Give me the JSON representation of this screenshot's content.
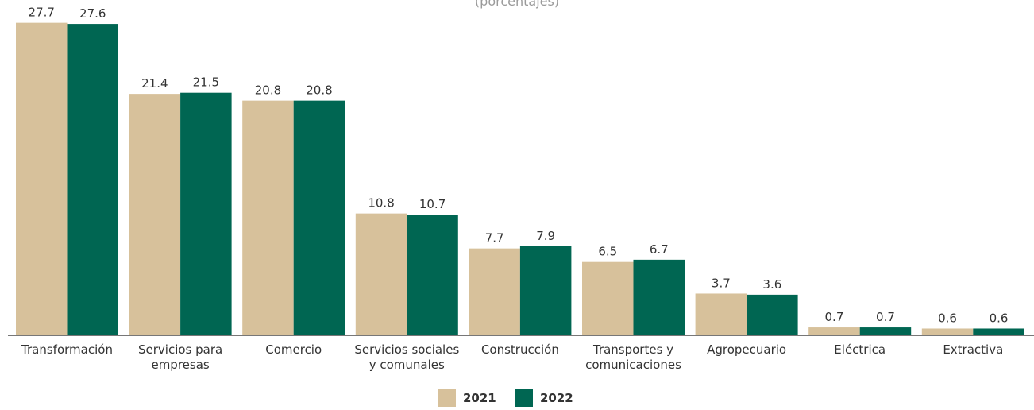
{
  "subtitle": "(porcentajes)",
  "legend": {
    "a": "2021",
    "b": "2022"
  },
  "colors": {
    "2021": "#d7c19b",
    "2022": "#006652",
    "axis": "#777777",
    "text": "#333333"
  },
  "chart_data": {
    "type": "bar",
    "categories": [
      [
        "Transformación"
      ],
      [
        "Servicios para",
        "empresas"
      ],
      [
        "Comercio"
      ],
      [
        "Servicios sociales",
        "y comunales"
      ],
      [
        "Construcción"
      ],
      [
        "Transportes y",
        "comunicaciones"
      ],
      [
        "Agropecuario"
      ],
      [
        "Eléctrica"
      ],
      [
        "Extractiva"
      ]
    ],
    "series": [
      {
        "name": "2021",
        "values": [
          27.7,
          21.4,
          20.8,
          10.8,
          7.7,
          6.5,
          3.7,
          0.7,
          0.6
        ]
      },
      {
        "name": "2022",
        "values": [
          27.6,
          21.5,
          20.8,
          10.7,
          7.9,
          6.7,
          3.6,
          0.7,
          0.6
        ]
      }
    ],
    "data_labels": true,
    "grid": false,
    "legend_position": "bottom-center"
  }
}
